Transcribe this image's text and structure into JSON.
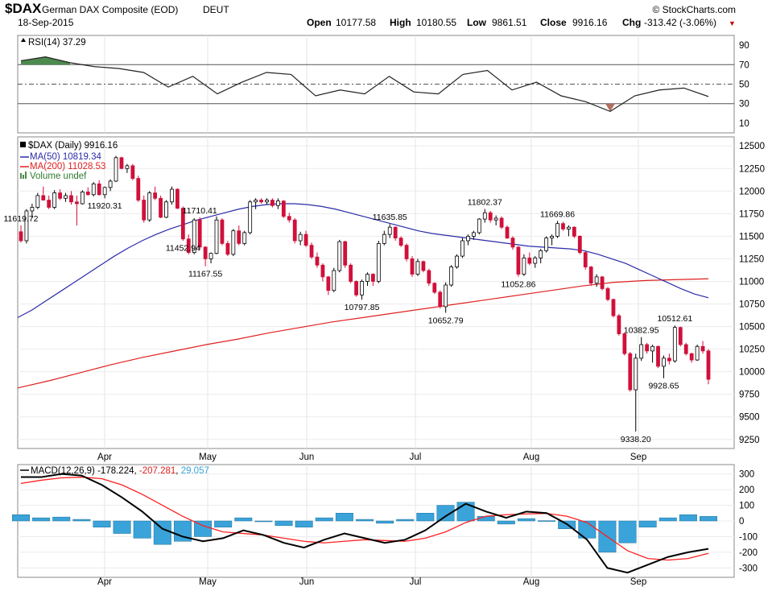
{
  "header": {
    "symbol": "$DAX",
    "name": "German DAX Composite (EOD)",
    "exchange": "DEUT",
    "date": "18-Sep-2015",
    "source": "© StockCharts.com",
    "open_label": "Open",
    "open": "10177.58",
    "high_label": "High",
    "high": "10180.55",
    "low_label": "Low",
    "low": "9861.51",
    "close_label": "Close",
    "close": "9916.16",
    "chg_label": "Chg",
    "chg": "-313.42 (-3.06%)",
    "chg_arrow": "▼"
  },
  "colors": {
    "up_candle": "#ffffff",
    "down_candle": "#d0103a",
    "ma50": "#2b2ba8",
    "ma200": "#e02020",
    "macd_line": "#000000",
    "signal_line": "#ff2020",
    "histogram": "#3aa3d9",
    "rsi_overbought_fill": "#4d8a4d",
    "rsi_oversold_fill": "#b07060"
  },
  "chart_data": [
    {
      "panel": "rsi",
      "type": "line",
      "legend": "RSI(14) 37.29",
      "y_ticks": [
        90,
        70,
        50,
        30,
        10
      ],
      "ylim": [
        0,
        100
      ],
      "reference_lines": [
        70,
        50,
        30
      ],
      "x_dates": [
        "2015-03-09",
        "2015-03-16",
        "2015-03-23",
        "2015-03-30",
        "2015-04-06",
        "2015-04-13",
        "2015-04-20",
        "2015-04-27",
        "2015-05-04",
        "2015-05-11",
        "2015-05-18",
        "2015-05-25",
        "2015-06-01",
        "2015-06-08",
        "2015-06-15",
        "2015-06-22",
        "2015-06-29",
        "2015-07-06",
        "2015-07-13",
        "2015-07-20",
        "2015-07-27",
        "2015-08-03",
        "2015-08-10",
        "2015-08-17",
        "2015-08-24",
        "2015-08-31",
        "2015-09-07",
        "2015-09-14",
        "2015-09-18"
      ],
      "values": [
        74,
        78,
        72,
        68,
        66,
        62,
        47,
        58,
        40,
        52,
        62,
        60,
        38,
        44,
        40,
        58,
        42,
        40,
        60,
        64,
        44,
        52,
        38,
        32,
        22,
        38,
        44,
        46,
        37.29
      ]
    },
    {
      "panel": "price",
      "type": "candlestick",
      "series": [
        {
          "name": "$DAX (Daily) 9916.16"
        },
        {
          "name": "MA(50) 10819.34"
        },
        {
          "name": "MA(200) 11028.53"
        },
        {
          "name": "Volume undef"
        }
      ],
      "y_ticks": [
        12500,
        12250,
        12000,
        11750,
        11500,
        11250,
        11000,
        10750,
        10500,
        10250,
        10000,
        9750,
        9500,
        9250
      ],
      "ylim": [
        9150,
        12600
      ],
      "x_ticks": [
        "Apr",
        "May",
        "Jun",
        "Jul",
        "Aug",
        "Sep"
      ],
      "annotations": [
        {
          "text": "11619.72",
          "value": 11619.72
        },
        {
          "text": "11167.55",
          "value": 11167.55
        },
        {
          "text": "11710.41",
          "value": 11710.41
        },
        {
          "text": "11920.31",
          "value": 11920.31
        },
        {
          "text": "10797.85",
          "value": 10797.85
        },
        {
          "text": "11452.94",
          "value": 11452.94
        },
        {
          "text": "11635.85",
          "value": 11635.85
        },
        {
          "text": "10652.79",
          "value": 10652.79
        },
        {
          "text": "11802.37",
          "value": 11802.37
        },
        {
          "text": "11052.86",
          "value": 11052.86
        },
        {
          "text": "11669.86",
          "value": 11669.86
        },
        {
          "text": "9338.20",
          "value": 9338.2
        },
        {
          "text": "10382.95",
          "value": 10382.95
        },
        {
          "text": "9928.65",
          "value": 9928.65
        },
        {
          "text": "10512.61",
          "value": 10512.61
        }
      ],
      "ohlc": [
        [
          11550,
          11620,
          11430,
          11450
        ],
        [
          11450,
          11800,
          11420,
          11780
        ],
        [
          11780,
          11860,
          11700,
          11820
        ],
        [
          11820,
          11980,
          11800,
          11950
        ],
        [
          11950,
          12050,
          11900,
          11900
        ],
        [
          11900,
          11950,
          11800,
          11820
        ],
        [
          11820,
          12010,
          11800,
          11980
        ],
        [
          11980,
          12020,
          11900,
          11920
        ],
        [
          11920,
          11980,
          11880,
          11950
        ],
        [
          11950,
          12000,
          11850,
          11880
        ],
        [
          11880,
          11950,
          11619,
          11860
        ],
        [
          11860,
          12010,
          11850,
          11990
        ],
        [
          11990,
          12040,
          11950,
          11960
        ],
        [
          11960,
          12100,
          11940,
          12080
        ],
        [
          12080,
          12120,
          11950,
          11960
        ],
        [
          11960,
          12050,
          11920,
          12040
        ],
        [
          12040,
          12130,
          12000,
          12110
        ],
        [
          12110,
          12390,
          12100,
          12370
        ],
        [
          12370,
          12380,
          12240,
          12250
        ],
        [
          12250,
          12300,
          12200,
          12280
        ],
        [
          12280,
          12300,
          12120,
          12140
        ],
        [
          12140,
          12170,
          11880,
          11900
        ],
        [
          11900,
          11950,
          11650,
          11680
        ],
        [
          11680,
          12000,
          11660,
          11980
        ],
        [
          11980,
          12050,
          11900,
          11920
        ],
        [
          11920,
          11950,
          11700,
          11710
        ],
        [
          11710,
          11900,
          11700,
          11880
        ],
        [
          11880,
          12050,
          11850,
          12020
        ],
        [
          12020,
          12030,
          11800,
          11810
        ],
        [
          11810,
          11830,
          11450,
          11470
        ],
        [
          11470,
          11520,
          11300,
          11320
        ],
        [
          11320,
          11700,
          11300,
          11680
        ],
        [
          11680,
          11710,
          11350,
          11380
        ],
        [
          11380,
          11390,
          11167,
          11250
        ],
        [
          11250,
          11320,
          11200,
          11310
        ],
        [
          11310,
          11720,
          11300,
          11680
        ],
        [
          11680,
          11700,
          11400,
          11420
        ],
        [
          11420,
          11450,
          11280,
          11300
        ],
        [
          11300,
          11580,
          11280,
          11560
        ],
        [
          11560,
          11620,
          11400,
          11420
        ],
        [
          11420,
          11560,
          11400,
          11540
        ],
        [
          11540,
          11900,
          11520,
          11880
        ],
        [
          11880,
          11920,
          11800,
          11900
        ],
        [
          11900,
          11920,
          11860,
          11880
        ],
        [
          11880,
          11920,
          11850,
          11900
        ],
        [
          11900,
          11920,
          11820,
          11840
        ],
        [
          11840,
          11920,
          11800,
          11890
        ],
        [
          11890,
          11900,
          11700,
          11720
        ],
        [
          11720,
          11760,
          11650,
          11680
        ],
        [
          11680,
          11700,
          11420,
          11450
        ],
        [
          11450,
          11550,
          11400,
          11520
        ],
        [
          11520,
          11560,
          11380,
          11400
        ],
        [
          11400,
          11430,
          11250,
          11270
        ],
        [
          11270,
          11320,
          11150,
          11180
        ],
        [
          11180,
          11200,
          11000,
          11050
        ],
        [
          11050,
          11060,
          10850,
          10900
        ],
        [
          10900,
          11150,
          10880,
          11120
        ],
        [
          11120,
          11460,
          11100,
          11440
        ],
        [
          11440,
          11450,
          11150,
          11180
        ],
        [
          11180,
          11200,
          10980,
          11000
        ],
        [
          11000,
          11010,
          10830,
          10850
        ],
        [
          10850,
          11020,
          10797,
          11000
        ],
        [
          11000,
          11100,
          10950,
          11080
        ],
        [
          11080,
          11090,
          10950,
          11000
        ],
        [
          11000,
          11450,
          10980,
          11420
        ],
        [
          11420,
          11560,
          11400,
          11520
        ],
        [
          11520,
          11635,
          11480,
          11600
        ],
        [
          11600,
          11610,
          11450,
          11480
        ],
        [
          11480,
          11500,
          11380,
          11400
        ],
        [
          11400,
          11420,
          11220,
          11250
        ],
        [
          11250,
          11280,
          11050,
          11080
        ],
        [
          11080,
          11250,
          11060,
          11220
        ],
        [
          11220,
          11230,
          11100,
          11120
        ],
        [
          11120,
          11140,
          10950,
          10980
        ],
        [
          10980,
          10990,
          10860,
          10880
        ],
        [
          10880,
          10900,
          10700,
          10720
        ],
        [
          10720,
          10990,
          10652,
          10960
        ],
        [
          10960,
          11180,
          10940,
          11160
        ],
        [
          11160,
          11300,
          11140,
          11280
        ],
        [
          11280,
          11480,
          11260,
          11450
        ],
        [
          11450,
          11520,
          11400,
          11500
        ],
        [
          11500,
          11560,
          11460,
          11540
        ],
        [
          11540,
          11700,
          11520,
          11690
        ],
        [
          11690,
          11802,
          11650,
          11760
        ],
        [
          11760,
          11780,
          11650,
          11680
        ],
        [
          11680,
          11730,
          11620,
          11700
        ],
        [
          11700,
          11720,
          11580,
          11600
        ],
        [
          11600,
          11620,
          11470,
          11480
        ],
        [
          11480,
          11500,
          11350,
          11380
        ],
        [
          11380,
          11390,
          11052,
          11080
        ],
        [
          11080,
          11300,
          11060,
          11260
        ],
        [
          11260,
          11320,
          11180,
          11200
        ],
        [
          11200,
          11280,
          11150,
          11260
        ],
        [
          11260,
          11360,
          11200,
          11340
        ],
        [
          11340,
          11500,
          11320,
          11480
        ],
        [
          11480,
          11520,
          11400,
          11500
        ],
        [
          11500,
          11669,
          11480,
          11640
        ],
        [
          11640,
          11660,
          11560,
          11580
        ],
        [
          11580,
          11620,
          11500,
          11600
        ],
        [
          11600,
          11610,
          11480,
          11500
        ],
        [
          11500,
          11510,
          11300,
          11320
        ],
        [
          11320,
          11330,
          11130,
          11160
        ],
        [
          11160,
          11170,
          10950,
          10980
        ],
        [
          10980,
          11080,
          10940,
          11050
        ],
        [
          11050,
          11060,
          10900,
          10920
        ],
        [
          10920,
          10940,
          10780,
          10800
        ],
        [
          10800,
          10810,
          10600,
          10620
        ],
        [
          10620,
          10640,
          10400,
          10420
        ],
        [
          10420,
          10430,
          10180,
          10200
        ],
        [
          10200,
          10220,
          9780,
          9800
        ],
        [
          9800,
          10200,
          9338,
          10150
        ],
        [
          10150,
          10383,
          10120,
          10300
        ],
        [
          10300,
          10320,
          10200,
          10230
        ],
        [
          10230,
          10300,
          10100,
          10280
        ],
        [
          10280,
          10290,
          10040,
          10060
        ],
        [
          10060,
          10180,
          9928,
          10150
        ],
        [
          10150,
          10200,
          10080,
          10120
        ],
        [
          10120,
          10512,
          10100,
          10490
        ],
        [
          10490,
          10500,
          10280,
          10300
        ],
        [
          10300,
          10320,
          10180,
          10200
        ],
        [
          10200,
          10210,
          10100,
          10130
        ],
        [
          10130,
          10300,
          10120,
          10280
        ],
        [
          10280,
          10340,
          10200,
          10230
        ],
        [
          10230,
          10250,
          9861,
          9916
        ]
      ],
      "ma50": [
        10600,
        10680,
        10780,
        10880,
        10980,
        11080,
        11180,
        11280,
        11370,
        11450,
        11520,
        11580,
        11630,
        11680,
        11720,
        11760,
        11800,
        11830,
        11850,
        11860,
        11860,
        11850,
        11830,
        11800,
        11760,
        11720,
        11680,
        11640,
        11600,
        11560,
        11530,
        11510,
        11490,
        11470,
        11450,
        11430,
        11410,
        11390,
        11380,
        11370,
        11360,
        11340,
        11300,
        11250,
        11200,
        11130,
        11060,
        10990,
        10920,
        10860,
        10819
      ],
      "ma200": [
        9820,
        9900,
        9990,
        10080,
        10160,
        10230,
        10300,
        10360,
        10430,
        10490,
        10550,
        10600,
        10650,
        10700,
        10750,
        10800,
        10850,
        10900,
        10950,
        10990,
        11010,
        11020,
        11028.53
      ]
    },
    {
      "panel": "macd",
      "type": "line",
      "legend_name": "MACD(12,26,9)",
      "legend_macd": "-178.224",
      "legend_signal": "-207.281",
      "legend_hist": "29.057",
      "y_ticks": [
        300,
        200,
        100,
        0,
        -100,
        -200,
        -300
      ],
      "ylim": [
        -360,
        360
      ],
      "x_ticks": [
        "Apr",
        "May",
        "Jun",
        "Jul",
        "Aug",
        "Sep"
      ],
      "macd": [
        280,
        280,
        300,
        290,
        230,
        150,
        60,
        -50,
        -100,
        -130,
        -110,
        -60,
        -90,
        -140,
        -170,
        -120,
        -80,
        -110,
        -140,
        -120,
        -60,
        30,
        110,
        60,
        20,
        60,
        50,
        -20,
        -120,
        -300,
        -330,
        -280,
        -230,
        -200,
        -178
      ],
      "signal": [
        240,
        260,
        275,
        280,
        270,
        230,
        170,
        100,
        30,
        -30,
        -70,
        -80,
        -90,
        -110,
        -130,
        -140,
        -130,
        -120,
        -125,
        -130,
        -110,
        -70,
        -10,
        30,
        40,
        45,
        48,
        30,
        -10,
        -100,
        -190,
        -240,
        -250,
        -240,
        -207
      ],
      "histogram": [
        40,
        20,
        25,
        10,
        -40,
        -80,
        -110,
        -150,
        -130,
        -100,
        -40,
        20,
        0,
        -30,
        -40,
        20,
        50,
        10,
        -15,
        10,
        50,
        100,
        120,
        30,
        -20,
        15,
        2,
        -50,
        -110,
        -200,
        -140,
        -40,
        20,
        40,
        29
      ]
    }
  ]
}
